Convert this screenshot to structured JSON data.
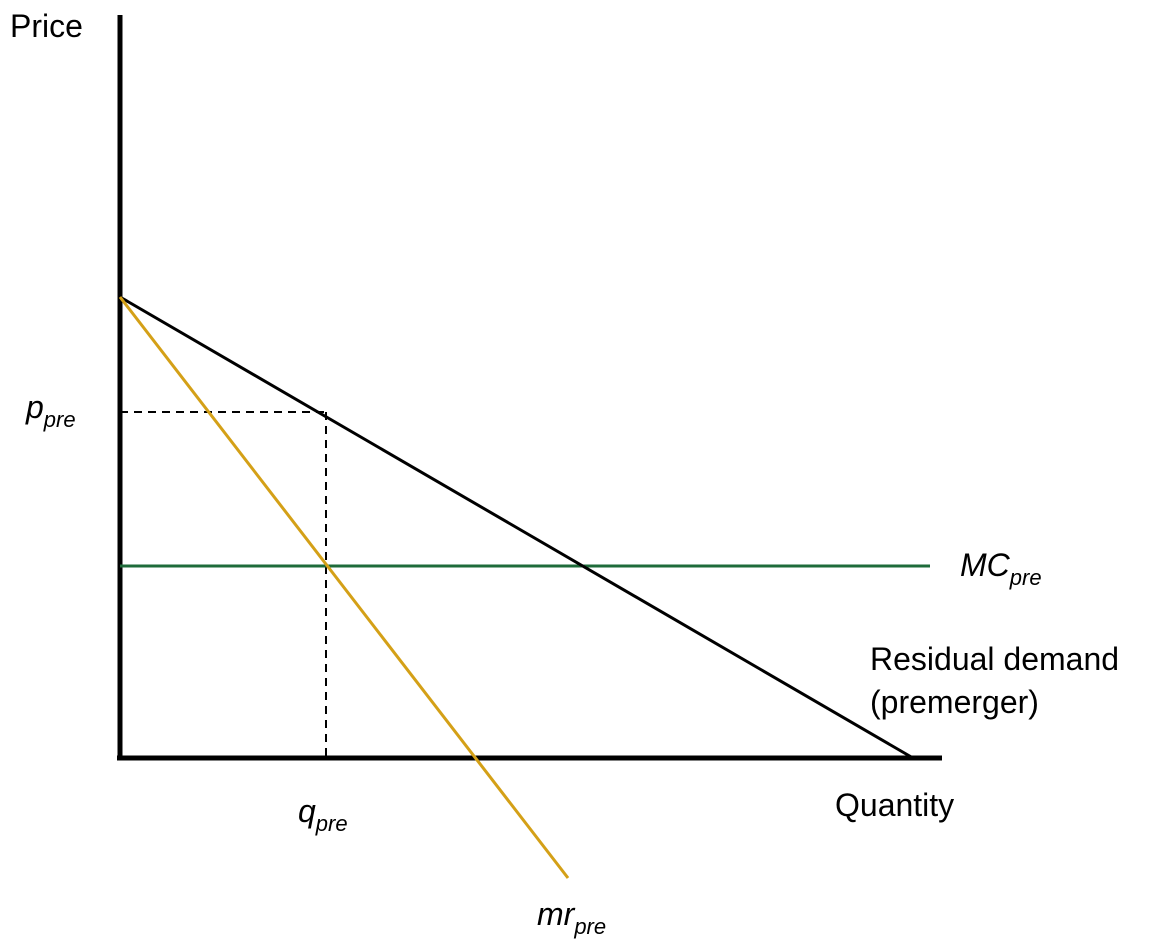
{
  "axes": {
    "y_label": "Price",
    "x_label": "Quantity"
  },
  "curves": {
    "demand": {
      "label_line1": "Residual demand",
      "label_line2": "(premerger)"
    },
    "mc": {
      "label_main": "MC",
      "label_sub": "pre"
    },
    "mr": {
      "label_main": "mr",
      "label_sub": "pre"
    }
  },
  "equilibrium": {
    "price_label_main": "p",
    "price_label_sub": "pre",
    "quantity_label_main": "q",
    "quantity_label_sub": "pre"
  },
  "colors": {
    "axes": "#000000",
    "demand": "#000000",
    "mc": "#1e6b3a",
    "mr": "#d4a017",
    "guides": "#000000"
  }
}
